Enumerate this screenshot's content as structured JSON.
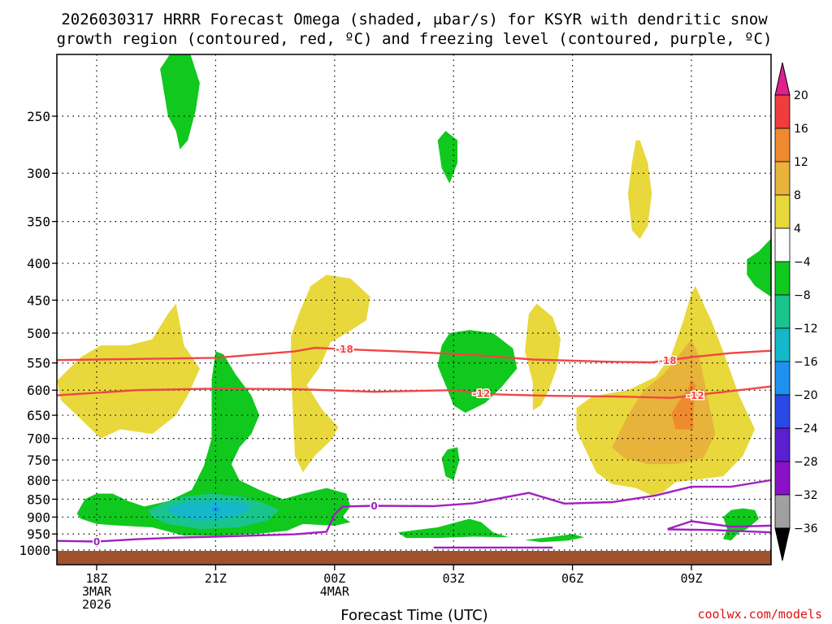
{
  "chart_data": {
    "type": "time-height cross section (filled contour)",
    "title_line1": "2026030317 HRRR Forecast Omega (shaded, μbar/s) for KSYR with dendritic snow",
    "title_line2": "growth region (contoured, red, ºC) and freezing level (contoured, purple, ºC)",
    "xlabel": "Forecast Time (UTC)",
    "x_ticks": [
      {
        "t": 0,
        "lines": [
          "18Z",
          "3MAR",
          "2026"
        ]
      },
      {
        "t": 3,
        "lines": [
          "21Z"
        ]
      },
      {
        "t": 6,
        "lines": [
          "00Z",
          "4MAR"
        ]
      },
      {
        "t": 9,
        "lines": [
          "03Z"
        ]
      },
      {
        "t": 12,
        "lines": [
          "06Z"
        ]
      },
      {
        "t": 15,
        "lines": [
          "09Z"
        ]
      }
    ],
    "x_range_hours": [
      -1,
      17
    ],
    "y_axis": "pressure (hPa)",
    "y_range": [
      1020,
      200
    ],
    "y_ticks": [
      250,
      300,
      350,
      400,
      450,
      500,
      550,
      600,
      650,
      700,
      750,
      800,
      850,
      900,
      950,
      1000
    ],
    "grid": true,
    "colorbar": {
      "levels": [
        "20",
        "16",
        "12",
        "8",
        "4",
        "−4",
        "−8",
        "−12",
        "−16",
        "−20",
        "−24",
        "−28",
        "−32",
        "−36"
      ],
      "colors": [
        "#f03c3c",
        "#ef8a2f",
        "#e8b33a",
        "#e8d83b",
        "#ffffff",
        "#10c81e",
        "#19c48d",
        "#14b8c8",
        "#1f91f0",
        "#2a48e6",
        "#5a1fd0",
        "#8a12c6",
        "#a0a0a0"
      ],
      "top_extend_color": "#e0208c",
      "bottom_extend_color": "#000000"
    },
    "contours_isotherm": [
      {
        "value": -18,
        "label": "-18",
        "color": "#f04545",
        "points": [
          [
            -1,
            545
          ],
          [
            1,
            543
          ],
          [
            3,
            541
          ],
          [
            5,
            530
          ],
          [
            5.5,
            524
          ],
          [
            6.5,
            527
          ],
          [
            8,
            531
          ],
          [
            9.5,
            536
          ],
          [
            11,
            544
          ],
          [
            13,
            548
          ],
          [
            14,
            549
          ],
          [
            15,
            540
          ],
          [
            16,
            533
          ],
          [
            17,
            529
          ]
        ]
      },
      {
        "value": -12,
        "label": "-12",
        "color": "#f04545",
        "points": [
          [
            -1,
            610
          ],
          [
            1,
            600
          ],
          [
            3,
            597
          ],
          [
            5,
            598
          ],
          [
            7,
            603
          ],
          [
            9,
            600
          ],
          [
            10,
            608
          ],
          [
            11.5,
            611
          ],
          [
            13,
            612
          ],
          [
            14.5,
            615
          ],
          [
            15.5,
            606
          ],
          [
            17,
            593
          ]
        ]
      },
      {
        "value": 0,
        "label": "0",
        "color": "#a020c0",
        "points": [
          [
            -1,
            971
          ],
          [
            0,
            973
          ],
          [
            1,
            966
          ],
          [
            2,
            961
          ],
          [
            3,
            958
          ],
          [
            5,
            951
          ],
          [
            5.8,
            943
          ],
          [
            6,
            892
          ],
          [
            6.2,
            870
          ],
          [
            7,
            868
          ],
          [
            8.5,
            869
          ],
          [
            9.5,
            861
          ],
          [
            10.9,
            833
          ],
          [
            11.8,
            862
          ],
          [
            13,
            858
          ],
          [
            14.1,
            840
          ],
          [
            15,
            817
          ],
          [
            16,
            817
          ],
          [
            17,
            800
          ]
        ]
      },
      {
        "value": 0,
        "label": "",
        "color": "#a020c0",
        "points": [
          [
            14.4,
            935
          ],
          [
            15,
            912
          ],
          [
            16,
            928
          ],
          [
            17,
            925
          ]
        ]
      },
      {
        "value": 0,
        "label": "",
        "color": "#a020c0",
        "points": [
          [
            14.4,
            936
          ],
          [
            15.5,
            938
          ],
          [
            17,
            945
          ]
        ]
      },
      {
        "value": 0,
        "label": "",
        "color": "#a020c0",
        "points": [
          [
            8.5,
            992
          ],
          [
            11.5,
            992
          ]
        ]
      }
    ],
    "omega_regions_note": "Filled omega regions (yellow/orange = rising motion to +16, green/cyan = sinking to -16) drawn from shape outlines in chart time (h) / pressure (hPa) units"
  },
  "surface_label": "ground",
  "credit": "coolwx.com/models"
}
